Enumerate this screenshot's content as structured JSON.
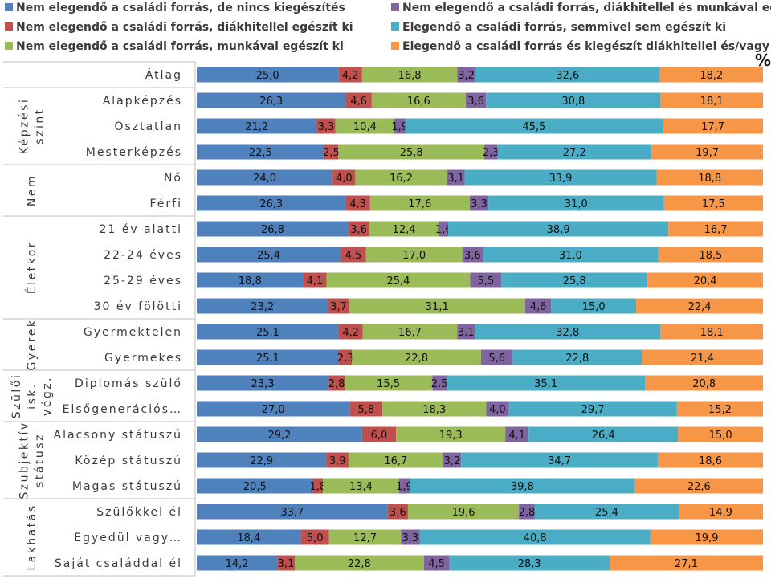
{
  "chart_data": {
    "type": "stacked-bar-horizontal",
    "unit": "%",
    "xlim": [
      0,
      100
    ],
    "series": [
      {
        "name": "Nem elegendő a családi forrás, de nincs kiegészítés",
        "color": "#4f81bd"
      },
      {
        "name": "Nem elegendő a családi forrás, diákhitellel egészít ki",
        "color": "#c0504d"
      },
      {
        "name": "Nem elegendő a családi forrás, munkával egészít ki",
        "color": "#9bbb59"
      },
      {
        "name": "Nem elegendő a családi forrás, diákhitellel és munkával egészít ki",
        "color": "#8064a2"
      },
      {
        "name": "Elegendő a családi forrás, semmivel sem egészít ki",
        "color": "#4bacc6"
      },
      {
        "name": "Elegendő a családi forrás és kiegészít diákhitellel és/vagy munkával",
        "color": "#f79646"
      }
    ],
    "groups": [
      {
        "label": "",
        "label_lines": [],
        "row_count": 1
      },
      {
        "label": "Képzési szint",
        "label_lines": [
          "Képzési",
          "szint"
        ],
        "row_count": 3
      },
      {
        "label": "Nem",
        "label_lines": [
          "Nem"
        ],
        "row_count": 2
      },
      {
        "label": "Életkor",
        "label_lines": [
          "Életkor"
        ],
        "row_count": 4
      },
      {
        "label": "Gyerek",
        "label_lines": [
          "Gyerek"
        ],
        "row_count": 2
      },
      {
        "label": "Szülői isk. végz.",
        "label_lines": [
          "Szülői",
          "isk.",
          "végz."
        ],
        "row_count": 2
      },
      {
        "label": "Szubjektív státusz",
        "label_lines": [
          "Szubjektív",
          "státusz"
        ],
        "row_count": 3
      },
      {
        "label": "Lakhatás",
        "label_lines": [
          "Lakhatás"
        ],
        "row_count": 3
      }
    ],
    "categories": [
      {
        "label": "Átlag",
        "values": [
          "25,0",
          "4,2",
          "16,8",
          "3,2",
          "32,6",
          "18,2"
        ]
      },
      {
        "label": "Alapképzés",
        "values": [
          "26,3",
          "4,6",
          "16,6",
          "3,6",
          "30,8",
          "18,1"
        ]
      },
      {
        "label": "Osztatlan",
        "values": [
          "21,2",
          "3,3",
          "10,4",
          "1,9",
          "45,5",
          "17,7"
        ]
      },
      {
        "label": "Mesterképzés",
        "values": [
          "22,5",
          "2,5",
          "25,8",
          "2,3",
          "27,2",
          "19,7"
        ]
      },
      {
        "label": "Nő",
        "values": [
          "24,0",
          "4,0",
          "16,2",
          "3,1",
          "33,9",
          "18,8"
        ]
      },
      {
        "label": "Férfi",
        "values": [
          "26,3",
          "4,3",
          "17,6",
          "3,3",
          "31,0",
          "17,5"
        ]
      },
      {
        "label": "21 év alatti",
        "values": [
          "26,8",
          "3,6",
          "12,4",
          "1,6",
          "38,9",
          "16,7"
        ]
      },
      {
        "label": "22-24 éves",
        "values": [
          "25,4",
          "4,5",
          "17,0",
          "3,6",
          "31,0",
          "18,5"
        ]
      },
      {
        "label": "25-29 éves",
        "values": [
          "18,8",
          "4,1",
          "25,4",
          "5,5",
          "25,8",
          "20,4"
        ]
      },
      {
        "label": "30 év fölötti",
        "values": [
          "23,2",
          "3,7",
          "31,1",
          "4,6",
          "15,0",
          "22,4"
        ]
      },
      {
        "label": "Gyermektelen",
        "values": [
          "25,1",
          "4,2",
          "16,7",
          "3,1",
          "32,8",
          "18,1"
        ]
      },
      {
        "label": "Gyermekes",
        "values": [
          "25,1",
          "2,3",
          "22,8",
          "5,6",
          "22,8",
          "21,4"
        ]
      },
      {
        "label": "Diplomás szülő",
        "values": [
          "23,3",
          "2,8",
          "15,5",
          "2,5",
          "35,1",
          "20,8"
        ]
      },
      {
        "label": "Elsőgenerációs…",
        "values": [
          "27,0",
          "5,8",
          "18,3",
          "4,0",
          "29,7",
          "15,2"
        ]
      },
      {
        "label": "Alacsony státuszú",
        "values": [
          "29,2",
          "6,0",
          "19,3",
          "4,1",
          "26,4",
          "15,0"
        ]
      },
      {
        "label": "Közép státuszú",
        "values": [
          "22,9",
          "3,9",
          "16,7",
          "3,2",
          "34,7",
          "18,6"
        ]
      },
      {
        "label": "Magas státuszú",
        "values": [
          "20,5",
          "1,8",
          "13,4",
          "1,9",
          "39,8",
          "22,6"
        ]
      },
      {
        "label": "Szülőkkel él",
        "values": [
          "33,7",
          "3,6",
          "19,6",
          "2,8",
          "25,4",
          "14,9"
        ]
      },
      {
        "label": "Egyedül vagy…",
        "values": [
          "18,4",
          "5,0",
          "12,7",
          "3,3",
          "40,8",
          "19,9"
        ]
      },
      {
        "label": "Saját családdal él",
        "values": [
          "14,2",
          "3,1",
          "22,8",
          "4,5",
          "28,3",
          "27,1"
        ]
      }
    ]
  }
}
